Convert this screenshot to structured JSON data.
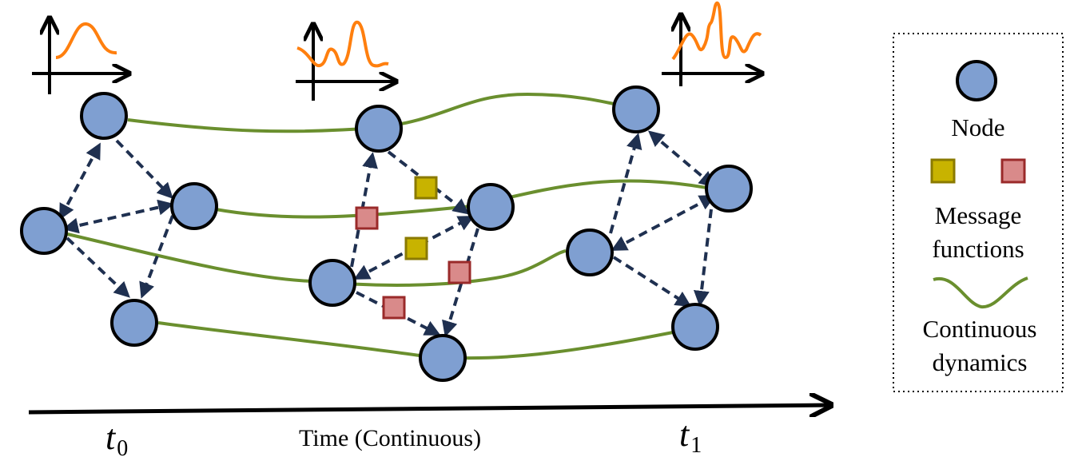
{
  "time_axis": {
    "label": "Time (Continuous)",
    "start_label": "t",
    "start_subscript": "0",
    "end_label": "t",
    "end_subscript": "1"
  },
  "legend": {
    "node_label": "Node",
    "message_label_line1": "Message",
    "message_label_line2": "functions",
    "dynamics_label_line1": "Continuous",
    "dynamics_label_line2": "dynamics"
  },
  "colors": {
    "node_fill": "#7f9fd1",
    "node_stroke": "#000000",
    "edge": "#1f3050",
    "dynamics": "#6a8f2e",
    "message_yellow": "#c8b300",
    "message_red": "#d98a8a",
    "signal": "#ff7f0e"
  },
  "icons": [
    "signal-plot-icon",
    "node-icon",
    "message-square-icon",
    "dynamics-curve-icon"
  ]
}
